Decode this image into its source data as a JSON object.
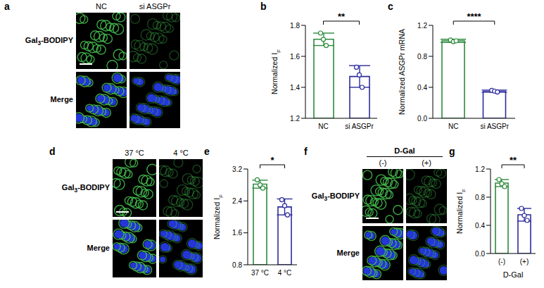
{
  "chart_data": [
    {
      "panel": "b",
      "type": "bar",
      "categories": [
        "NC",
        "si ASGPr"
      ],
      "values": [
        1.71,
        1.47
      ],
      "errors": [
        0.04,
        0.07
      ],
      "points": [
        [
          1.75,
          1.71,
          1.67
        ],
        [
          1.53,
          1.48,
          1.4
        ]
      ],
      "colors": [
        "#2e8b3e",
        "#2c2c9c"
      ],
      "ylim": [
        1.2,
        1.8
      ],
      "yticks": [
        1.2,
        1.4,
        1.6,
        1.8
      ],
      "y_label": [
        "Normalized I",
        {
          "sub": "F"
        }
      ],
      "annotations": [
        "**"
      ]
    },
    {
      "panel": "c",
      "type": "bar",
      "categories": [
        "NC",
        "si ASGPr"
      ],
      "values": [
        1.0,
        0.35
      ],
      "errors": [
        0.02,
        0.015
      ],
      "points": [
        [
          1.01,
          0.99,
          1.0
        ],
        [
          0.36,
          0.35,
          0.34
        ]
      ],
      "colors": [
        "#2e8b3e",
        "#2c2c9c"
      ],
      "ylim": [
        0,
        1.2
      ],
      "yticks": [
        {
          "value": 0,
          "label": "0.0"
        },
        0.4,
        0.8,
        1.2
      ],
      "y_label": [
        "Normalized ASGPr mRNA"
      ],
      "annotations": [
        "****"
      ]
    },
    {
      "panel": "e",
      "type": "bar",
      "categories": [
        "37 °C",
        "4 °C"
      ],
      "values": [
        2.82,
        2.25
      ],
      "errors": [
        0.1,
        0.2
      ],
      "points": [
        [
          2.93,
          2.8,
          2.72
        ],
        [
          2.43,
          2.28,
          2.05
        ]
      ],
      "colors": [
        "#2e8b3e",
        "#2c2c9c"
      ],
      "ylim": [
        0.8,
        3.2
      ],
      "yticks": [
        0.8,
        1.6,
        2.4,
        3.2
      ],
      "y_label": [
        "Normalized I",
        {
          "sub": "F"
        }
      ],
      "annotations": [
        "*"
      ]
    },
    {
      "panel": "g",
      "type": "bar",
      "categories": [
        "(-)",
        "(+)"
      ],
      "values": [
        1.0,
        0.55
      ],
      "errors": [
        0.05,
        0.09
      ],
      "points": [
        [
          1.05,
          0.99,
          0.95
        ],
        [
          0.64,
          0.54,
          0.47
        ]
      ],
      "colors": [
        "#2e8b3e",
        "#2c2c9c"
      ],
      "ylim": [
        0,
        1.2
      ],
      "yticks": [
        {
          "value": 0,
          "label": "0.0"
        },
        0.4,
        0.8,
        1.2
      ],
      "y_label": [
        "Normalized I",
        {
          "sub": "F"
        }
      ],
      "x_label": "D-Gal",
      "annotations": [
        "**"
      ]
    }
  ],
  "image_panels": [
    {
      "panel": "a",
      "columns": [
        "NC",
        "si ASGPr"
      ],
      "rows": [
        [
          "Gal",
          {
            "sub": "3"
          },
          "-BODIPY"
        ],
        [
          "Merge"
        ]
      ]
    },
    {
      "panel": "d",
      "columns": [
        "37 °C",
        "4 °C"
      ],
      "rows": [
        [
          "Gal",
          {
            "sub": "3"
          },
          "-BODIPY"
        ],
        [
          "Merge"
        ]
      ]
    },
    {
      "panel": "f",
      "header": "D-Gal",
      "columns": [
        "(-)",
        "(+)"
      ],
      "rows": [
        [
          "Gal",
          {
            "sub": "3"
          },
          "-BODIPY"
        ],
        [
          "Merge"
        ]
      ]
    }
  ]
}
